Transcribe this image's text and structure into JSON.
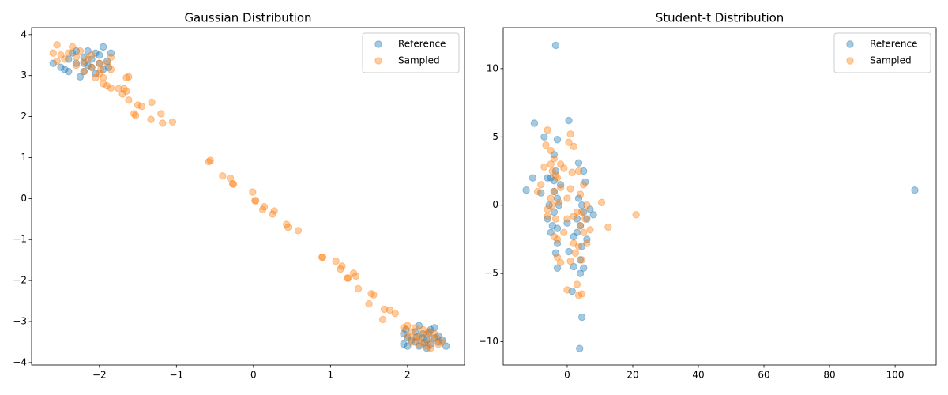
{
  "chart_data": [
    {
      "type": "scatter",
      "title": "Gaussian Distribution",
      "legend": "upper right",
      "xlim": [
        -2.88,
        2.74
      ],
      "ylim": [
        -4.06,
        4.17
      ],
      "xticks": [
        {
          "value": -2,
          "label": "−2"
        },
        {
          "value": -1,
          "label": "−1"
        },
        0,
        1,
        2
      ],
      "yticks": [
        {
          "value": -4,
          "label": "−4"
        },
        {
          "value": -3,
          "label": "−3"
        },
        {
          "value": -2,
          "label": "−2"
        },
        {
          "value": -1,
          "label": "−1"
        },
        0,
        1,
        2,
        3,
        4
      ],
      "series": [
        {
          "name": "Reference",
          "color": "#1f77b4",
          "x": [
            -2.3,
            -2.2,
            -2.1,
            -2.0,
            -1.95,
            -2.15,
            -2.45,
            -2.5,
            -2.4,
            -2.25,
            -2.05,
            -1.9,
            -1.85,
            -1.88,
            -2.35,
            -2.6,
            -2.2,
            -2.1,
            -2.0,
            -2.3,
            -2.15,
            -1.95,
            -2.05,
            -2.4,
            -2.2,
            2.2,
            2.3,
            2.1,
            2.0,
            1.95,
            2.4,
            2.5,
            2.25,
            2.35,
            2.15,
            2.05,
            2.3,
            1.98,
            2.2,
            2.4,
            2.1,
            2.25,
            2.35,
            2.0,
            2.15,
            2.28,
            2.12,
            2.45,
            1.95,
            2.22
          ],
          "values": [
            3.3,
            3.45,
            3.2,
            3.5,
            3.7,
            3.6,
            3.15,
            3.2,
            3.1,
            2.97,
            3.05,
            3.35,
            3.55,
            3.2,
            3.55,
            3.3,
            3.1,
            3.4,
            3.3,
            3.6,
            3.25,
            3.15,
            3.55,
            3.4,
            3.3,
            -3.4,
            -3.2,
            -3.5,
            -3.6,
            -3.3,
            -3.35,
            -3.6,
            -3.65,
            -3.15,
            -3.1,
            -3.45,
            -3.55,
            -3.2,
            -3.3,
            -3.5,
            -3.25,
            -3.45,
            -3.4,
            -3.4,
            -3.6,
            -3.28,
            -3.38,
            -3.45,
            -3.55,
            -3.52
          ]
        },
        {
          "name": "Sampled",
          "color": "#ff7f0e",
          "x": [
            -2.55,
            -2.6,
            -2.5,
            -2.35,
            -2.3,
            -2.2,
            -2.1,
            -2.05,
            -2.0,
            -1.95,
            -2.4,
            -2.25,
            -2.15,
            -2.0,
            -1.85,
            -1.9,
            -2.45,
            -2.3,
            -2.1,
            -1.98,
            -2.2,
            -2.55,
            1.95,
            2.0,
            2.05,
            2.1,
            2.15,
            2.2,
            2.25,
            2.3,
            2.35,
            2.4,
            2.45,
            2.2,
            2.1,
            2.3,
            2.05,
            2.28,
            2.15,
            2.38,
            2.0,
            2.25,
            -1.85,
            -1.95,
            -1.9,
            -1.85,
            -1.75,
            -1.68,
            -1.65,
            -1.7,
            -1.62,
            -1.65,
            -1.62,
            -1.5,
            -1.45,
            -1.32,
            -1.55,
            -1.53,
            -1.33,
            -1.2,
            -1.18,
            -1.05,
            -0.58,
            -0.56,
            -0.4,
            -0.3,
            -0.27,
            -0.26,
            -0.01,
            0.02,
            0.03,
            0.12,
            0.14,
            0.25,
            0.27,
            0.43,
            0.45,
            0.58,
            0.89,
            0.9,
            1.07,
            1.13,
            1.15,
            1.22,
            1.23,
            1.3,
            1.33,
            1.36,
            1.5,
            1.53,
            1.56,
            1.68,
            1.7,
            1.77,
            1.84
          ],
          "values": [
            3.75,
            3.55,
            3.5,
            3.7,
            3.45,
            3.35,
            3.2,
            2.95,
            3.05,
            2.8,
            3.55,
            3.6,
            3.4,
            3.3,
            3.45,
            3.3,
            3.4,
            3.25,
            3.5,
            3.15,
            3.1,
            3.35,
            -3.15,
            -3.1,
            -3.25,
            -3.4,
            -3.35,
            -3.5,
            -3.6,
            -3.45,
            -3.3,
            -3.55,
            -3.5,
            -3.2,
            -3.15,
            -3.65,
            -3.5,
            -3.25,
            -3.55,
            -3.4,
            -3.35,
            -3.3,
            3.15,
            2.95,
            2.75,
            2.7,
            2.68,
            2.68,
            2.62,
            2.55,
            2.4,
            2.95,
            2.97,
            2.28,
            2.25,
            2.35,
            2.07,
            2.03,
            1.93,
            2.07,
            1.84,
            1.87,
            0.9,
            0.93,
            0.55,
            0.5,
            0.36,
            0.35,
            0.16,
            -0.05,
            -0.05,
            -0.27,
            -0.2,
            -0.38,
            -0.3,
            -0.63,
            -0.7,
            -0.78,
            -1.43,
            -1.43,
            -1.53,
            -1.72,
            -1.65,
            -1.94,
            -1.94,
            -1.82,
            -1.89,
            -2.2,
            -2.57,
            -2.32,
            -2.35,
            -2.95,
            -2.7,
            -2.72,
            -2.8
          ]
        }
      ]
    },
    {
      "type": "scatter",
      "title": "Student-t Distribution",
      "legend": "upper right",
      "xlim": [
        -19.5,
        112.5
      ],
      "ylim": [
        -11.7,
        13.0
      ],
      "xticks": [
        0,
        20,
        40,
        60,
        80,
        100
      ],
      "yticks": [
        {
          "value": -10,
          "label": "−10"
        },
        {
          "value": -5,
          "label": "−5"
        },
        0,
        5,
        10
      ],
      "series": [
        {
          "name": "Reference",
          "color": "#1f77b4",
          "x": [
            -4,
            -3,
            -5,
            -4,
            -3.5,
            -2,
            -5.5,
            -4.5,
            -3,
            -4,
            -6,
            -8,
            -10.5,
            -3,
            -5,
            -2.5,
            -6,
            -4,
            -3.5,
            -3,
            -12.5,
            -10,
            -7,
            -3.5,
            -3,
            0.5,
            4,
            5,
            3,
            4.5,
            6,
            3.5,
            5.5,
            3.5,
            4,
            5,
            2,
            1.5,
            4,
            7,
            8,
            6,
            3,
            4.5,
            2,
            5,
            0,
            0.5,
            4.5,
            3.8,
            106
          ],
          "values": [
            1,
            0.5,
            2,
            -0.5,
            2.5,
            1.5,
            0,
            -1.5,
            -2.8,
            3.7,
            2,
            0.9,
            2,
            -1.7,
            -2,
            0,
            -1,
            1.8,
            -3.5,
            -4.6,
            1.1,
            6,
            5,
            11.7,
            4.8,
            6.2,
            -1.5,
            -0.5,
            -2,
            -3,
            -1,
            0.5,
            1.7,
            3.1,
            -4,
            -4.6,
            -4.5,
            -6.3,
            -5,
            -0.3,
            -0.7,
            -2.5,
            -1,
            0,
            -2.3,
            2.5,
            -1.3,
            -3.4,
            -8.2,
            -10.5,
            1.1
          ]
        },
        {
          "name": "Sampled",
          "color": "#ff7f0e",
          "x": [
            -4,
            -3,
            -5,
            -6,
            -2,
            -3.5,
            -4.5,
            -5,
            -6.5,
            -6,
            -5,
            -4,
            -7,
            -8,
            -9,
            -3,
            -4,
            -3,
            -2,
            -1,
            -2.5,
            -6,
            -3.5,
            -4.5,
            -2,
            0,
            1,
            0.5,
            1,
            2,
            1.5,
            -1,
            4,
            5,
            3,
            4,
            5,
            6,
            3.5,
            4.5,
            2.5,
            3,
            3.5,
            4.5,
            0,
            1,
            2,
            6,
            7,
            5.5,
            3.5,
            4.5,
            2,
            0,
            21,
            12.5,
            10.5
          ],
          "values": [
            1,
            2,
            0.5,
            -0.3,
            1.3,
            -1,
            2.5,
            4,
            4.4,
            5.5,
            3,
            3.4,
            2.8,
            1.5,
            1,
            -2.5,
            -2.3,
            -3.8,
            -4.2,
            -2,
            0.2,
            -0.8,
            2.2,
            0,
            3,
            0.5,
            1.2,
            4.6,
            5.2,
            4.3,
            2.4,
            2.7,
            -1.5,
            -2,
            -0.5,
            0.8,
            1.5,
            0,
            -3,
            -4,
            -3.5,
            -5.8,
            -6.6,
            -6.5,
            -6.2,
            -4.1,
            -2.8,
            -2.8,
            -1.8,
            -1,
            2.5,
            -0.5,
            -0.8,
            -1,
            -0.7,
            -1.6,
            0.2
          ]
        }
      ]
    }
  ]
}
